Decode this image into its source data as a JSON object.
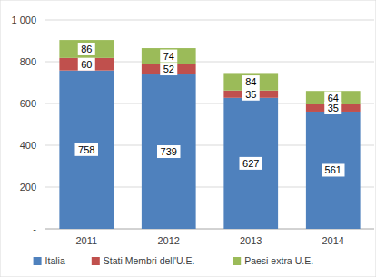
{
  "chart_data": {
    "type": "bar",
    "stacked": true,
    "data_labels": true,
    "grid": true,
    "legend": "bottom",
    "categories": [
      "2011",
      "2012",
      "2013",
      "2014"
    ],
    "series": [
      {
        "name": "Italia",
        "color": "#4f81bd",
        "values": [
          758,
          739,
          627,
          561
        ]
      },
      {
        "name": "Stati Membri dell'U.E.",
        "color": "#c0504d",
        "values": [
          60,
          52,
          35,
          35
        ]
      },
      {
        "name": "Paesi extra U.E.",
        "color": "#9bbb59",
        "values": [
          86,
          74,
          84,
          64
        ]
      }
    ],
    "ylim": [
      0,
      1000
    ],
    "yticks": [
      {
        "value": 0,
        "label": "-"
      },
      200,
      400,
      600,
      800,
      {
        "value": 1000,
        "label": "1 000"
      }
    ]
  }
}
